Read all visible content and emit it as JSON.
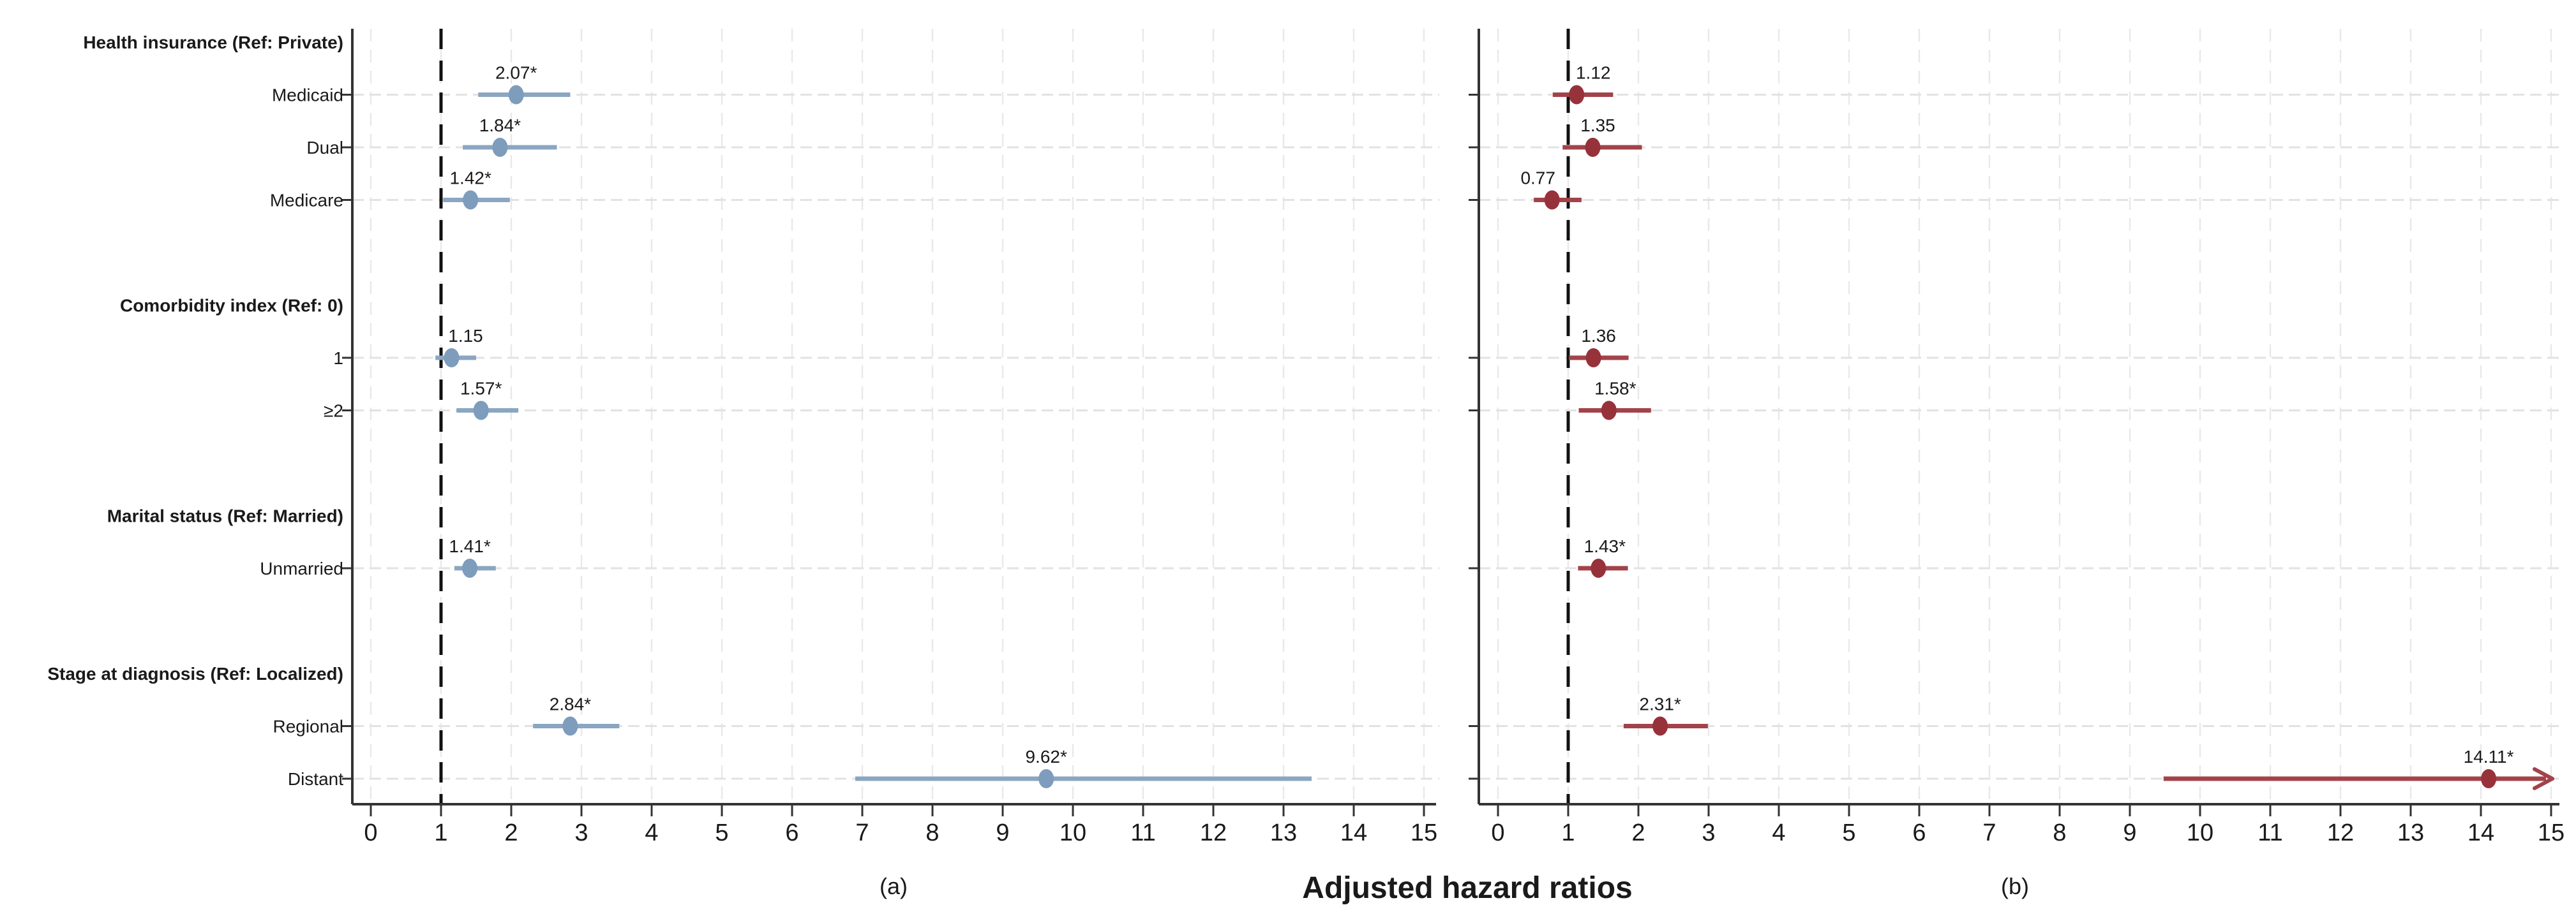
{
  "figure": {
    "xaxis_title": "Adjusted hazard ratios",
    "panel_labels": {
      "a": "(a)",
      "b": "(b)"
    },
    "colors": {
      "panel_a_line": "#8ba6c1",
      "panel_a_marker": "#7e9cbc",
      "panel_b_line": "#a2434a",
      "panel_b_marker": "#97313a",
      "ref_line": "#111111",
      "axis": "#333333",
      "grid_horizontal": "#e2e2e2",
      "grid_vertical": "#e9e9e9",
      "text": "#1a1a1a"
    }
  },
  "chart_data": {
    "type": "forest",
    "title": "",
    "xlabel": "Adjusted hazard ratios",
    "xlim": [
      0,
      15
    ],
    "xtick_step": 1,
    "reference_line_x": 1,
    "grid": "light dashed horizontal gridlines at data rows; light vertical gridlines at every integer tick",
    "legend_position": "none",
    "panels": [
      {
        "id": "a",
        "label": "(a)",
        "series_name": "panel-a",
        "marker": "ellipse"
      },
      {
        "id": "b",
        "label": "(b)",
        "series_name": "panel-b",
        "marker": "ellipse"
      }
    ],
    "rows": [
      {
        "kind": "heading",
        "label": "Health insurance (Ref: Private)"
      },
      {
        "kind": "item",
        "label": "Medicaid",
        "a": {
          "est": 2.07,
          "lo": 1.53,
          "hi": 2.84,
          "text": "2.07*"
        },
        "b": {
          "est": 1.12,
          "lo": 0.78,
          "hi": 1.64,
          "text": "1.12",
          "ldx": 26
        }
      },
      {
        "kind": "item",
        "label": "Dual",
        "a": {
          "est": 1.84,
          "lo": 1.31,
          "hi": 2.65,
          "text": "1.84*"
        },
        "b": {
          "est": 1.35,
          "lo": 0.92,
          "hi": 2.05,
          "text": "1.35",
          "ldx": 8
        }
      },
      {
        "kind": "item",
        "label": "Medicare",
        "a": {
          "est": 1.42,
          "lo": 1.03,
          "hi": 1.98,
          "text": "1.42*"
        },
        "b": {
          "est": 0.77,
          "lo": 0.51,
          "hi": 1.19,
          "text": "0.77",
          "ldx": -22
        }
      },
      {
        "kind": "spacer"
      },
      {
        "kind": "heading",
        "label": "Comorbidity index (Ref: 0)"
      },
      {
        "kind": "item",
        "label": "1",
        "a": {
          "est": 1.15,
          "lo": 0.92,
          "hi": 1.5,
          "text": "1.15",
          "ldx": 22
        },
        "b": {
          "est": 1.36,
          "lo": 1.01,
          "hi": 1.86,
          "text": "1.36",
          "ldx": 8
        }
      },
      {
        "kind": "item",
        "label": "≥2",
        "a": {
          "est": 1.57,
          "lo": 1.22,
          "hi": 2.1,
          "text": "1.57*"
        },
        "b": {
          "est": 1.58,
          "lo": 1.15,
          "hi": 2.18,
          "text": "1.58*",
          "ldx": 10
        }
      },
      {
        "kind": "spacer"
      },
      {
        "kind": "heading",
        "label": "Marital status (Ref: Married)"
      },
      {
        "kind": "item",
        "label": "Unmarried",
        "a": {
          "est": 1.41,
          "lo": 1.19,
          "hi": 1.78,
          "text": "1.41*"
        },
        "b": {
          "est": 1.43,
          "lo": 1.14,
          "hi": 1.85,
          "text": "1.43*",
          "ldx": 10
        }
      },
      {
        "kind": "spacer"
      },
      {
        "kind": "heading",
        "label": "Stage at diagnosis (Ref: Localized)"
      },
      {
        "kind": "item",
        "label": "Regional",
        "a": {
          "est": 2.84,
          "lo": 2.31,
          "hi": 3.54,
          "text": "2.84*"
        },
        "b": {
          "est": 2.31,
          "lo": 1.79,
          "hi": 2.99,
          "text": "2.31*"
        }
      },
      {
        "kind": "item",
        "label": "Distant",
        "a": {
          "est": 9.62,
          "lo": 6.9,
          "hi": 13.4,
          "text": "9.62*"
        },
        "b": {
          "est": 14.11,
          "lo": 9.48,
          "hi": 15,
          "hi_arrow": true,
          "text": "14.11*"
        }
      }
    ]
  }
}
